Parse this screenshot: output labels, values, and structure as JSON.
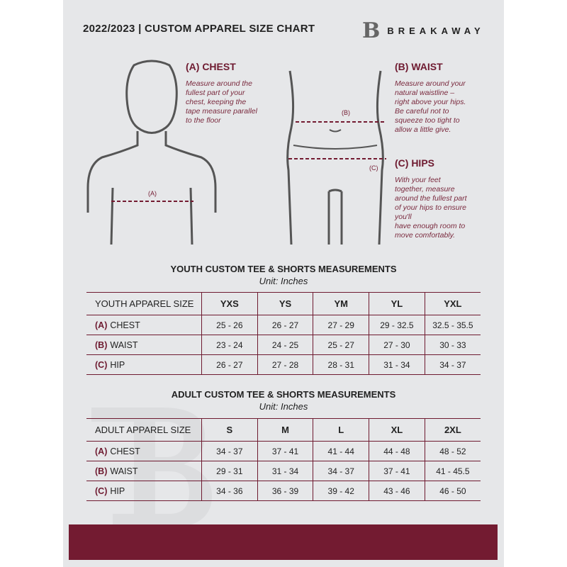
{
  "header": {
    "title": "2022/2023  |  CUSTOM APPAREL SIZE CHART",
    "brand_mark": "B",
    "brand_name": "BREAKAWAY"
  },
  "measures": {
    "chest": {
      "heading": "(A) CHEST",
      "label": "(A)",
      "text": [
        "Measure around the",
        "fullest part of your",
        "chest, keeping the",
        "tape measure parallel",
        "to the floor"
      ]
    },
    "waist": {
      "heading": "(B) WAIST",
      "label": "(B)",
      "text": [
        "Measure around your",
        "natural waistline –",
        "right above your hips.",
        "Be careful not to",
        "squeeze too tight to",
        "allow a little give."
      ]
    },
    "hips": {
      "heading": "(C) HIPS",
      "label": "(C)",
      "text": [
        "With your feet",
        "together, measure",
        "around the fullest part",
        "of your hips to ensure",
        "you'll",
        "have enough room to",
        "move comfortably."
      ]
    }
  },
  "youth": {
    "title": "YOUTH CUSTOM TEE & SHORTS MEASUREMENTS",
    "unit": "Unit: Inches",
    "size_label": "YOUTH APPAREL SIZE",
    "sizes": [
      "YXS",
      "YS",
      "YM",
      "YL",
      "YXL"
    ],
    "rows": [
      {
        "code": "(A)",
        "name": "CHEST",
        "values": [
          "25 - 26",
          "26 - 27",
          "27 - 29",
          "29 - 32.5",
          "32.5 - 35.5"
        ]
      },
      {
        "code": "(B)",
        "name": "WAIST",
        "values": [
          "23 - 24",
          "24 - 25",
          "25 - 27",
          "27 - 30",
          "30 - 33"
        ]
      },
      {
        "code": "(C)",
        "name": "HIP",
        "values": [
          "26 - 27",
          "27 - 28",
          "28 - 31",
          "31 - 34",
          "34 - 37"
        ]
      }
    ]
  },
  "adult": {
    "title": "ADULT CUSTOM TEE & SHORTS MEASUREMENTS",
    "unit": "Unit: Inches",
    "size_label": "ADULT APPAREL SIZE",
    "sizes": [
      "S",
      "M",
      "L",
      "XL",
      "2XL"
    ],
    "rows": [
      {
        "code": "(A)",
        "name": "CHEST",
        "values": [
          "34 - 37",
          "37 - 41",
          "41 - 44",
          "44 - 48",
          "48 - 52"
        ]
      },
      {
        "code": "(B)",
        "name": "WAIST",
        "values": [
          "29 - 31",
          "31 - 34",
          "34 - 37",
          "37 - 41",
          "41 - 45.5"
        ]
      },
      {
        "code": "(C)",
        "name": "HIP",
        "values": [
          "34 - 36",
          "36 - 39",
          "39 - 42",
          "43 - 46",
          "46 - 50"
        ]
      }
    ]
  },
  "colors": {
    "accent": "#731b31",
    "background": "#e6e7e9"
  }
}
